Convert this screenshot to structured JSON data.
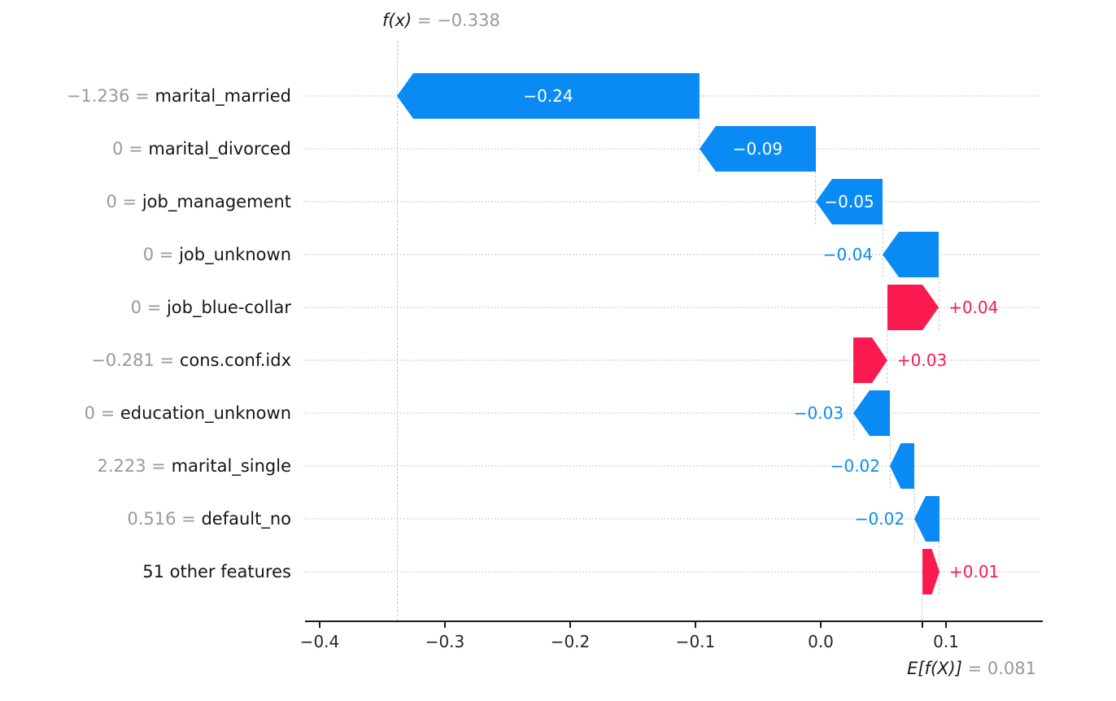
{
  "title": {
    "function_label": "f(x)",
    "value_part": " = −0.338"
  },
  "expected_value": {
    "label": "E[f(X)]",
    "value_part": " = 0.081"
  },
  "colors": {
    "positive_bar": "#fa1a50",
    "negative_bar": "#0a8bf3",
    "muted_text": "#999999",
    "feature_text": "#151515",
    "axis": "#1a1a1a",
    "gridline": "#e2e2e2",
    "connector": "#c9c9c9"
  },
  "x_axis": {
    "ticks": [
      {
        "label": "−0.4",
        "value": -0.4
      },
      {
        "label": "−0.3",
        "value": -0.3
      },
      {
        "label": "−0.2",
        "value": -0.2
      },
      {
        "label": "−0.1",
        "value": -0.1
      },
      {
        "label": "0.0",
        "value": 0.0
      },
      {
        "label": "0.1",
        "value": 0.1
      }
    ],
    "expected_value_tick": 0.081
  },
  "chart_data": {
    "type": "bar",
    "subtype": "shap-waterfall",
    "fx_value": -0.338,
    "base_value": 0.081,
    "xlim_ticks": [
      -0.4,
      -0.3,
      -0.2,
      -0.1,
      0.0,
      0.1
    ],
    "grid": "dotted-horizontal-row-lines",
    "rows": [
      {
        "value_label": "−1.236",
        "feature": "marital_married",
        "contribution": -0.24,
        "bar_label": "−0.24",
        "start": -0.0968,
        "end": -0.3383,
        "placement": "inside"
      },
      {
        "value_label": "0",
        "feature": "marital_divorced",
        "contribution": -0.09,
        "bar_label": "−0.09",
        "start": -0.0039,
        "end": -0.0968,
        "placement": "inside"
      },
      {
        "value_label": "0",
        "feature": "job_management",
        "contribution": -0.05,
        "bar_label": "−0.05",
        "start": 0.0494,
        "end": -0.0039,
        "placement": "inside"
      },
      {
        "value_label": "0",
        "feature": "job_unknown",
        "contribution": -0.04,
        "bar_label": "−0.04",
        "start": 0.0942,
        "end": 0.0494,
        "placement": "outside"
      },
      {
        "value_label": "0",
        "feature": "job_blue-collar",
        "contribution": 0.04,
        "bar_label": "+0.04",
        "start": 0.0532,
        "end": 0.0942,
        "placement": "outside"
      },
      {
        "value_label": "−0.281",
        "feature": "cons.conf.idx",
        "contribution": 0.03,
        "bar_label": "+0.03",
        "start": 0.026,
        "end": 0.0532,
        "placement": "outside"
      },
      {
        "value_label": "0",
        "feature": "education_unknown",
        "contribution": -0.03,
        "bar_label": "−0.03",
        "start": 0.0552,
        "end": 0.026,
        "placement": "outside"
      },
      {
        "value_label": "2.223",
        "feature": "marital_single",
        "contribution": -0.02,
        "bar_label": "−0.02",
        "start": 0.0747,
        "end": 0.0552,
        "placement": "outside"
      },
      {
        "value_label": "0.516",
        "feature": "default_no",
        "contribution": -0.02,
        "bar_label": "−0.02",
        "start": 0.0948,
        "end": 0.0747,
        "placement": "outside"
      },
      {
        "value_label": "",
        "feature": "51 other features",
        "contribution": 0.01,
        "bar_label": "+0.01",
        "start": 0.0812,
        "end": 0.0948,
        "placement": "outside"
      }
    ]
  }
}
